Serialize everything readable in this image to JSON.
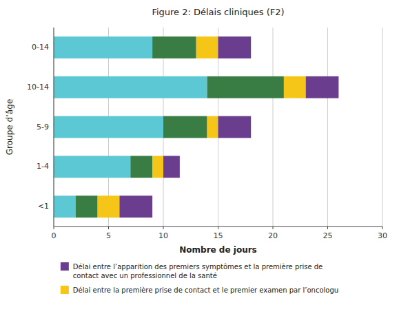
{
  "chart_data": {
    "type": "bar",
    "orientation": "horizontal",
    "stacked": true,
    "title": "Figure 2: Délais cliniques (F2)",
    "xlabel": "Nombre de jours",
    "ylabel": "Groupe d’âge",
    "categories": [
      "<1",
      "1-4",
      "5-9",
      "10-14",
      "0-14"
    ],
    "series": [
      {
        "color": "#5BC8D4",
        "values": [
          2.0,
          7.0,
          10.0,
          14.0,
          9.0
        ]
      },
      {
        "color": "#3A7D44",
        "values": [
          2.0,
          2.0,
          4.0,
          7.0,
          4.0
        ]
      },
      {
        "name": "Délai entre la première prise de contact et le premier examen par l’oncologu",
        "color": "#F5C518",
        "values": [
          2.0,
          1.0,
          1.0,
          2.0,
          2.0
        ]
      },
      {
        "name": "Délai entre l’apparition des premiers symptômes et la première prise de\ncontact avec un professionnel de la santé",
        "color": "#6A3D8F",
        "values": [
          3.0,
          1.5,
          3.0,
          3.0,
          3.0
        ]
      }
    ],
    "xlim": [
      0,
      30
    ],
    "xticks": [
      0,
      5,
      10,
      15,
      20,
      25,
      30
    ],
    "grid": true,
    "legend": "bottom"
  }
}
